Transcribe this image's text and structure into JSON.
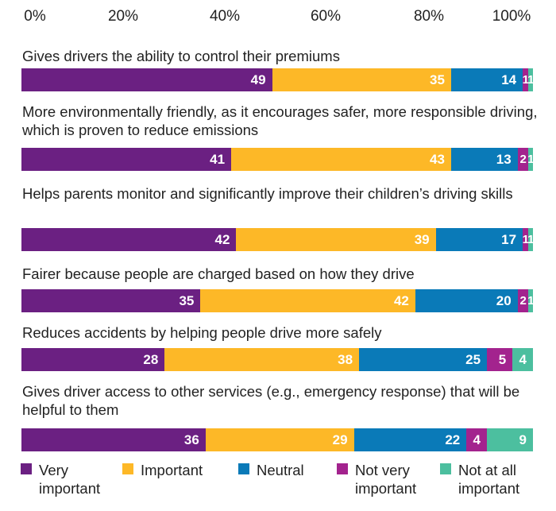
{
  "chart_data": {
    "type": "bar",
    "orientation": "horizontal",
    "stacked": true,
    "percent_stacked": true,
    "xlim": [
      0,
      100
    ],
    "x_ticks": [
      "0%",
      "20%",
      "40%",
      "60%",
      "80%",
      "100%"
    ],
    "categories": [
      "Gives drivers the ability to control their premiums",
      "More environmentally friendly, as it encourages safer, more responsible driving, which is proven to reduce emissions",
      "Helps parents monitor and significantly improve their children’s driving skills",
      "Fairer because people are charged based on how they drive",
      "Reduces accidents by helping people drive more safely",
      "Gives driver access to other services (e.g., emergency response) that will be helpful to them"
    ],
    "series": [
      {
        "name": "Very important",
        "color": "#6b2082",
        "values": [
          49,
          41,
          42,
          35,
          28,
          36
        ]
      },
      {
        "name": "Important",
        "color": "#fdb827",
        "values": [
          35,
          43,
          39,
          42,
          38,
          29
        ]
      },
      {
        "name": "Neutral",
        "color": "#0a7ab8",
        "values": [
          14,
          13,
          17,
          20,
          25,
          22
        ]
      },
      {
        "name": "Not very important",
        "color": "#a3238e",
        "values": [
          1,
          2,
          1,
          2,
          5,
          4
        ]
      },
      {
        "name": "Not at all important",
        "color": "#4cbf9f",
        "values": [
          1,
          1,
          1,
          1,
          4,
          9
        ]
      }
    ],
    "grid": false,
    "legend_position": "bottom"
  }
}
